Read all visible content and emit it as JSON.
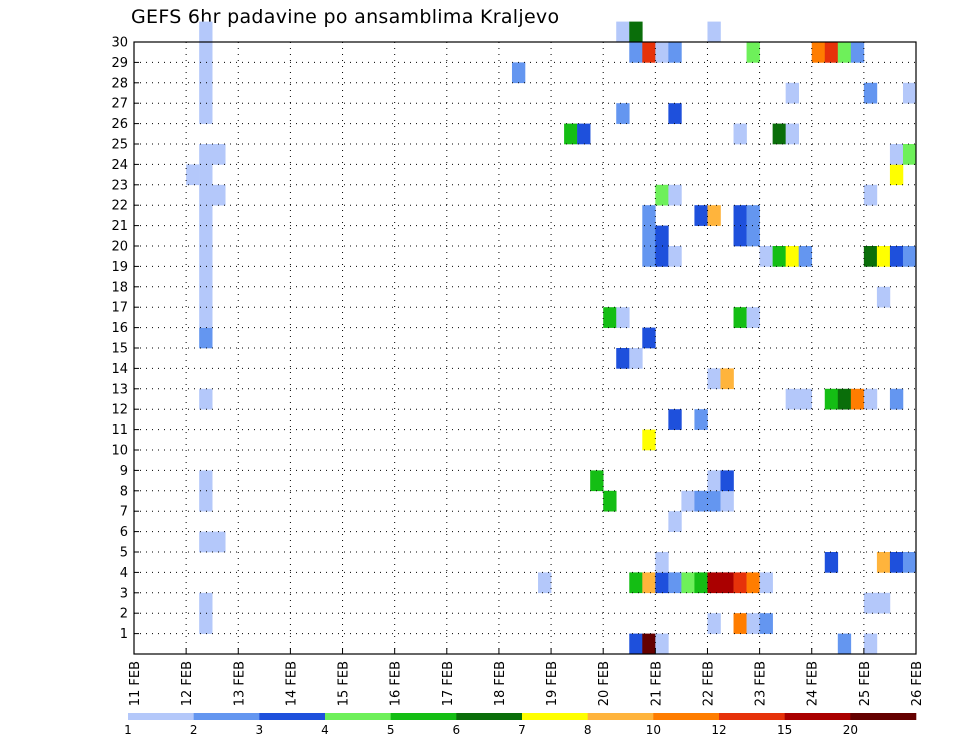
{
  "chart_data": {
    "type": "heatmap",
    "title": "GEFS 6hr padavine po ansamblima Kraljevo",
    "xlabel": "",
    "ylabel": "",
    "x_ticks": [
      "11 FEB",
      "12 FEB",
      "13 FEB",
      "14 FEB",
      "15 FEB",
      "16 FEB",
      "17 FEB",
      "18 FEB",
      "19 FEB",
      "20 FEB",
      "21 FEB",
      "22 FEB",
      "23 FEB",
      "24 FEB",
      "25 FEB",
      "26 FEB"
    ],
    "y_ticks": [
      1,
      2,
      3,
      4,
      5,
      6,
      7,
      8,
      9,
      10,
      11,
      12,
      13,
      14,
      15,
      16,
      17,
      18,
      19,
      20,
      21,
      22,
      23,
      24,
      25,
      26,
      27,
      28,
      29,
      30
    ],
    "x_range": [
      "11 FEB 00Z",
      "26 FEB 00Z"
    ],
    "y_range": [
      0,
      30
    ],
    "time_step_hours": 6,
    "grid": "dotted",
    "colorbar": {
      "levels": [
        "1",
        "2",
        "3",
        "4",
        "5",
        "6",
        "7",
        "8",
        "10",
        "12",
        "15",
        "20"
      ],
      "colors": [
        "#b4c8fa",
        "#6496f0",
        "#1e50dc",
        "#6ef05a",
        "#14be14",
        "#0a6e0a",
        "#ffff00",
        "#ffb43c",
        "#ff7d00",
        "#e6320a",
        "#aa0000",
        "#640000"
      ]
    },
    "series": [
      {
        "date": "12 FEB",
        "hour": "06Z",
        "cells": [
          [
            1,
            0
          ],
          [
            2,
            0
          ],
          [
            5,
            0
          ],
          [
            7,
            0
          ],
          [
            8,
            0
          ],
          [
            12,
            0
          ],
          [
            15,
            1
          ],
          [
            16,
            0
          ],
          [
            17,
            0
          ],
          [
            18,
            0
          ],
          [
            19,
            0
          ],
          [
            20,
            0
          ],
          [
            21,
            0
          ],
          [
            22,
            0
          ],
          [
            23,
            0
          ],
          [
            24,
            0
          ],
          [
            26,
            0
          ],
          [
            27,
            0
          ],
          [
            28,
            0
          ],
          [
            29,
            0
          ],
          [
            30,
            0
          ]
        ]
      },
      {
        "date": "12 FEB",
        "hour": "12Z",
        "cells": [
          [
            5,
            0
          ],
          [
            22,
            0
          ],
          [
            24,
            0
          ]
        ]
      },
      {
        "date": "12 FEB",
        "hour": "00Z",
        "cells": [
          [
            23,
            0
          ]
        ]
      },
      {
        "date": "18 FEB",
        "hour": "06Z",
        "cells": [
          [
            28,
            1
          ]
        ]
      },
      {
        "date": "18 FEB",
        "hour": "18Z",
        "cells": [
          [
            3,
            0
          ]
        ]
      },
      {
        "date": "19 FEB",
        "hour": "06Z",
        "cells": [
          [
            25,
            4
          ]
        ]
      },
      {
        "date": "19 FEB",
        "hour": "12Z",
        "cells": [
          [
            25,
            2
          ]
        ]
      },
      {
        "date": "19 FEB",
        "hour": "18Z",
        "cells": [
          [
            8,
            4
          ]
        ]
      },
      {
        "date": "20 FEB",
        "hour": "00Z",
        "cells": [
          [
            7,
            4
          ],
          [
            16,
            4
          ]
        ]
      },
      {
        "date": "20 FEB",
        "hour": "06Z",
        "cells": [
          [
            14,
            2
          ],
          [
            16,
            0
          ],
          [
            26,
            1
          ],
          [
            30,
            0
          ]
        ]
      },
      {
        "date": "20 FEB",
        "hour": "12Z",
        "cells": [
          [
            0,
            2
          ],
          [
            3,
            4
          ],
          [
            14,
            0
          ],
          [
            29,
            1
          ],
          [
            30,
            5
          ]
        ]
      },
      {
        "date": "20 FEB",
        "hour": "18Z",
        "cells": [
          [
            0,
            11
          ],
          [
            3,
            7
          ],
          [
            10,
            6
          ],
          [
            15,
            2
          ],
          [
            19,
            1
          ],
          [
            20,
            1
          ],
          [
            21,
            1
          ],
          [
            29,
            9
          ]
        ]
      },
      {
        "date": "21 FEB",
        "hour": "00Z",
        "cells": [
          [
            0,
            0
          ],
          [
            3,
            2
          ],
          [
            4,
            0
          ],
          [
            19,
            2
          ],
          [
            20,
            2
          ],
          [
            22,
            3
          ],
          [
            29,
            0
          ]
        ]
      },
      {
        "date": "21 FEB",
        "hour": "06Z",
        "cells": [
          [
            3,
            1
          ],
          [
            6,
            0
          ],
          [
            11,
            2
          ],
          [
            19,
            0
          ],
          [
            22,
            0
          ],
          [
            26,
            2
          ],
          [
            29,
            1
          ]
        ]
      },
      {
        "date": "21 FEB",
        "hour": "12Z",
        "cells": [
          [
            3,
            3
          ],
          [
            7,
            0
          ]
        ]
      },
      {
        "date": "21 FEB",
        "hour": "18Z",
        "cells": [
          [
            3,
            4
          ],
          [
            7,
            1
          ],
          [
            11,
            1
          ],
          [
            21,
            2
          ]
        ]
      },
      {
        "date": "22 FEB",
        "hour": "00Z",
        "cells": [
          [
            1,
            0
          ],
          [
            3,
            10
          ],
          [
            7,
            1
          ],
          [
            8,
            0
          ],
          [
            13,
            0
          ],
          [
            21,
            7
          ],
          [
            30,
            0
          ]
        ]
      },
      {
        "date": "22 FEB",
        "hour": "06Z",
        "cells": [
          [
            3,
            10
          ],
          [
            7,
            0
          ],
          [
            8,
            2
          ],
          [
            13,
            7
          ]
        ]
      },
      {
        "date": "22 FEB",
        "hour": "12Z",
        "cells": [
          [
            1,
            8
          ],
          [
            3,
            9
          ],
          [
            16,
            4
          ],
          [
            20,
            2
          ],
          [
            21,
            2
          ],
          [
            25,
            0
          ]
        ]
      },
      {
        "date": "22 FEB",
        "hour": "18Z",
        "cells": [
          [
            1,
            0
          ],
          [
            3,
            8
          ],
          [
            16,
            0
          ],
          [
            20,
            1
          ],
          [
            21,
            1
          ],
          [
            29,
            3
          ]
        ]
      },
      {
        "date": "23 FEB",
        "hour": "00Z",
        "cells": [
          [
            1,
            1
          ],
          [
            3,
            0
          ],
          [
            19,
            0
          ]
        ]
      },
      {
        "date": "23 FEB",
        "hour": "06Z",
        "cells": [
          [
            19,
            4
          ],
          [
            25,
            5
          ]
        ]
      },
      {
        "date": "23 FEB",
        "hour": "12Z",
        "cells": [
          [
            12,
            0
          ],
          [
            19,
            6
          ],
          [
            25,
            0
          ],
          [
            27,
            0
          ]
        ]
      },
      {
        "date": "23 FEB",
        "hour": "18Z",
        "cells": [
          [
            12,
            0
          ],
          [
            19,
            1
          ]
        ]
      },
      {
        "date": "24 FEB",
        "hour": "00Z",
        "cells": [
          [
            29,
            8
          ]
        ]
      },
      {
        "date": "24 FEB",
        "hour": "06Z",
        "cells": [
          [
            4,
            2
          ],
          [
            12,
            4
          ],
          [
            29,
            9
          ]
        ]
      },
      {
        "date": "24 FEB",
        "hour": "12Z",
        "cells": [
          [
            0,
            1
          ],
          [
            12,
            5
          ],
          [
            29,
            3
          ]
        ]
      },
      {
        "date": "24 FEB",
        "hour": "18Z",
        "cells": [
          [
            12,
            8
          ],
          [
            29,
            1
          ]
        ]
      },
      {
        "date": "25 FEB",
        "hour": "00Z",
        "cells": [
          [
            0,
            0
          ],
          [
            2,
            0
          ],
          [
            12,
            0
          ],
          [
            19,
            5
          ],
          [
            22,
            0
          ],
          [
            27,
            1
          ]
        ]
      },
      {
        "date": "25 FEB",
        "hour": "06Z",
        "cells": [
          [
            2,
            0
          ],
          [
            4,
            7
          ],
          [
            17,
            0
          ],
          [
            19,
            6
          ]
        ]
      },
      {
        "date": "25 FEB",
        "hour": "12Z",
        "cells": [
          [
            4,
            2
          ],
          [
            12,
            1
          ],
          [
            19,
            2
          ],
          [
            23,
            6
          ],
          [
            24,
            0
          ]
        ]
      },
      {
        "date": "25 FEB",
        "hour": "18Z",
        "cells": [
          [
            4,
            1
          ],
          [
            19,
            1
          ],
          [
            24,
            3
          ],
          [
            27,
            0
          ]
        ]
      }
    ]
  }
}
